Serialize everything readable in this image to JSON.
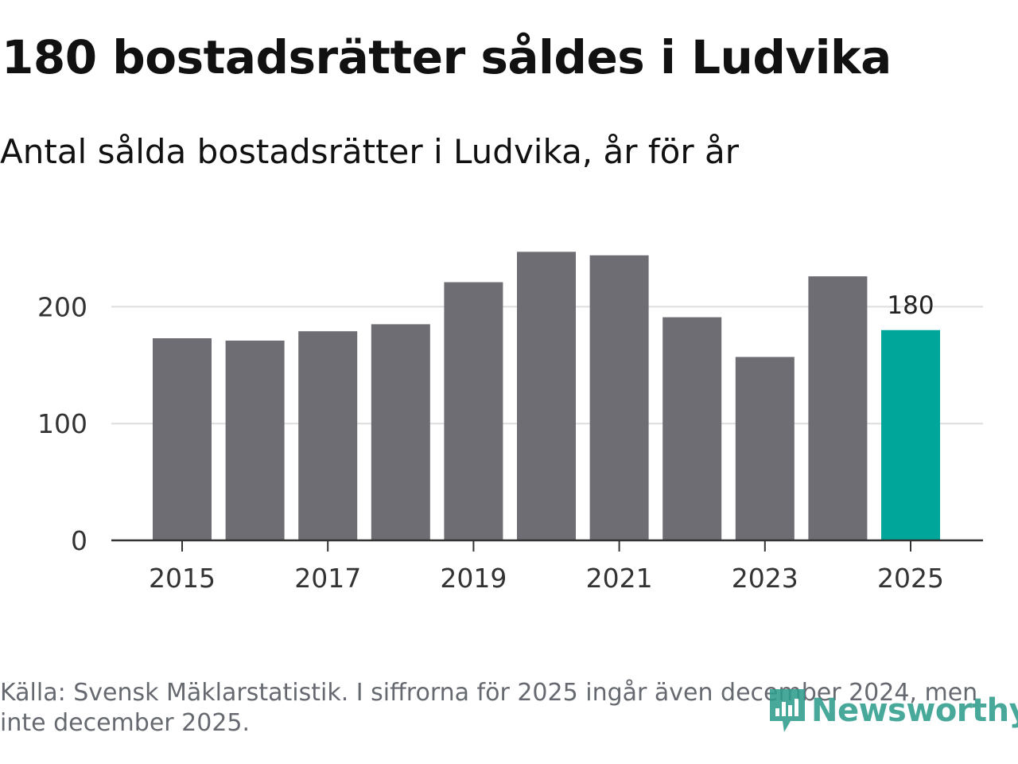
{
  "header": {
    "title": "180 bostadsrätter såldes i Ludvika",
    "subtitle": "Antal sålda bostadsrätter i Ludvika, år för år"
  },
  "footer": {
    "source": "Källa: Svensk Mäklarstatistik. I siffrorna för 2025 ingår även december 2024, men inte december 2025.",
    "logo": "Newsworthy"
  },
  "colors": {
    "bar": "#6e6d73",
    "highlight": "#00a69a",
    "grid": "#dddddd",
    "axis": "#333333"
  },
  "chart_data": {
    "type": "bar",
    "categories": [
      "2015",
      "2016",
      "2017",
      "2018",
      "2019",
      "2020",
      "2021",
      "2022",
      "2023",
      "2024",
      "2025"
    ],
    "values": [
      173,
      171,
      179,
      185,
      221,
      247,
      244,
      191,
      157,
      226,
      180
    ],
    "highlight_category": "2025",
    "data_label": "180",
    "x_tick_labels": [
      "2015",
      "2017",
      "2019",
      "2021",
      "2023",
      "2025"
    ],
    "y_ticks": [
      0,
      100,
      200
    ],
    "y_tick_labels": [
      "0",
      "100",
      "200"
    ],
    "ylim": [
      0,
      250
    ],
    "title": "180 bostadsrätter såldes i Ludvika",
    "xlabel": "",
    "ylabel": "",
    "grid": true
  }
}
